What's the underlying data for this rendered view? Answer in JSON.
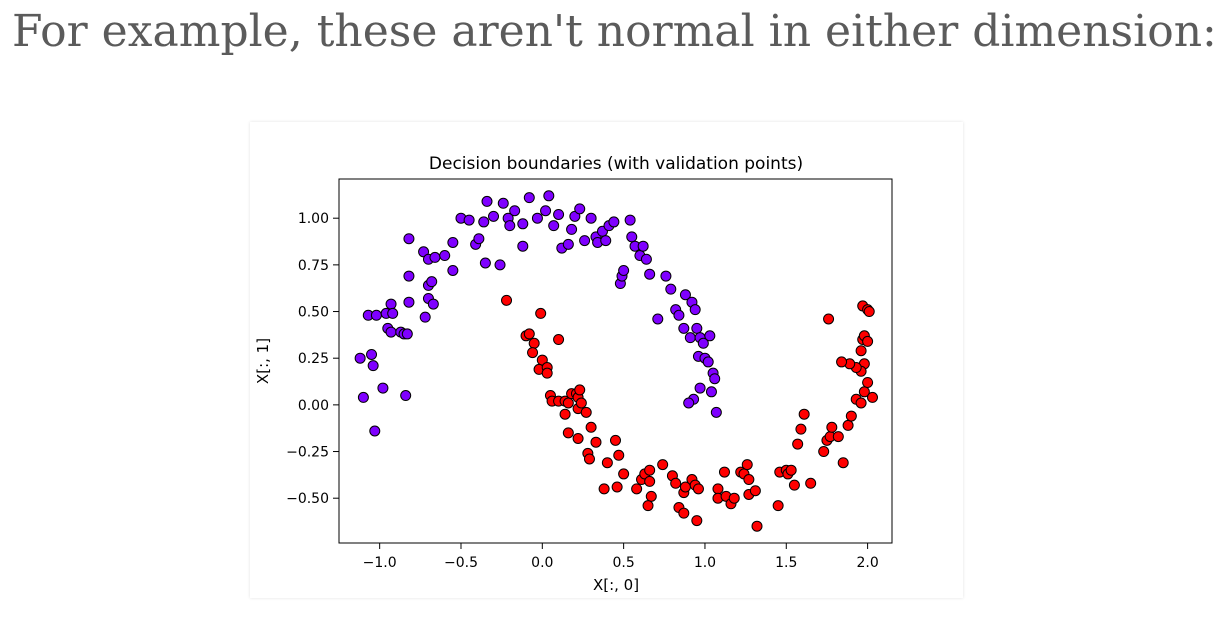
{
  "text": {
    "intro": "For example, these aren't normal in either dimension:"
  },
  "colors": {
    "class_0": "#7f00ff",
    "class_1": "#ff0000",
    "edge": "#000000",
    "page_text": "#5b5b5b"
  },
  "chart_data": {
    "type": "scatter",
    "title": "Decision boundaries (with validation points)",
    "xlabel": "X[:, 0]",
    "ylabel": "X[:, 1]",
    "xlim": [
      -1.25,
      2.15
    ],
    "ylim": [
      -0.74,
      1.21
    ],
    "xticks": [
      -1.0,
      -0.5,
      0.0,
      0.5,
      1.0,
      1.5,
      2.0
    ],
    "xtick_labels": [
      "−1.0",
      "−0.5",
      "0.0",
      "0.5",
      "1.0",
      "1.5",
      "2.0"
    ],
    "yticks": [
      -0.5,
      -0.25,
      0.0,
      0.25,
      0.5,
      0.75,
      1.0
    ],
    "ytick_labels": [
      "−0.50",
      "−0.25",
      "0.00",
      "0.25",
      "0.50",
      "0.75",
      "1.00"
    ],
    "grid": false,
    "legend": "none",
    "series": [
      {
        "class": 0,
        "color": "#7f00ff",
        "points": [
          [
            -1.12,
            0.25
          ],
          [
            -1.05,
            0.27
          ],
          [
            -1.04,
            0.21
          ],
          [
            -1.1,
            0.04
          ],
          [
            -1.03,
            -0.14
          ],
          [
            -0.98,
            0.09
          ],
          [
            -0.84,
            0.05
          ],
          [
            -1.07,
            0.48
          ],
          [
            -1.02,
            0.48
          ],
          [
            -0.96,
            0.49
          ],
          [
            -0.93,
            0.54
          ],
          [
            -0.92,
            0.49
          ],
          [
            -0.95,
            0.41
          ],
          [
            -0.93,
            0.39
          ],
          [
            -0.87,
            0.39
          ],
          [
            -0.85,
            0.38
          ],
          [
            -0.83,
            0.38
          ],
          [
            -0.82,
            0.55
          ],
          [
            -0.82,
            0.69
          ],
          [
            -0.82,
            0.89
          ],
          [
            -0.73,
            0.82
          ],
          [
            -0.7,
            0.78
          ],
          [
            -0.7,
            0.57
          ],
          [
            -0.72,
            0.47
          ],
          [
            -0.7,
            0.64
          ],
          [
            -0.68,
            0.66
          ],
          [
            -0.67,
            0.54
          ],
          [
            -0.66,
            0.79
          ],
          [
            -0.6,
            0.8
          ],
          [
            -0.55,
            0.72
          ],
          [
            -0.55,
            0.87
          ],
          [
            -0.5,
            1.0
          ],
          [
            -0.45,
            0.99
          ],
          [
            -0.41,
            0.86
          ],
          [
            -0.39,
            0.89
          ],
          [
            -0.36,
            0.98
          ],
          [
            -0.35,
            0.76
          ],
          [
            -0.34,
            1.09
          ],
          [
            -0.3,
            1.01
          ],
          [
            -0.26,
            0.75
          ],
          [
            -0.24,
            1.08
          ],
          [
            -0.21,
            1.0
          ],
          [
            -0.2,
            0.96
          ],
          [
            -0.17,
            1.04
          ],
          [
            -0.12,
            0.85
          ],
          [
            -0.12,
            0.97
          ],
          [
            -0.08,
            1.11
          ],
          [
            -0.03,
            1.0
          ],
          [
            0.02,
            1.04
          ],
          [
            0.04,
            1.12
          ],
          [
            0.07,
            0.96
          ],
          [
            0.1,
            1.02
          ],
          [
            0.12,
            0.84
          ],
          [
            0.16,
            0.86
          ],
          [
            0.18,
            0.94
          ],
          [
            0.2,
            1.01
          ],
          [
            0.23,
            1.05
          ],
          [
            0.26,
            0.88
          ],
          [
            0.3,
            1.0
          ],
          [
            0.33,
            0.9
          ],
          [
            0.34,
            0.87
          ],
          [
            0.37,
            0.93
          ],
          [
            0.39,
            0.88
          ],
          [
            0.41,
            0.96
          ],
          [
            0.44,
            0.98
          ],
          [
            0.48,
            0.65
          ],
          [
            0.49,
            0.69
          ],
          [
            0.5,
            0.72
          ],
          [
            0.54,
            0.99
          ],
          [
            0.55,
            0.9
          ],
          [
            0.57,
            0.85
          ],
          [
            0.6,
            0.8
          ],
          [
            0.62,
            0.85
          ],
          [
            0.64,
            0.78
          ],
          [
            0.66,
            0.7
          ],
          [
            0.71,
            0.46
          ],
          [
            0.76,
            0.69
          ],
          [
            0.79,
            0.62
          ],
          [
            0.82,
            0.51
          ],
          [
            0.84,
            0.48
          ],
          [
            0.87,
            0.41
          ],
          [
            0.88,
            0.59
          ],
          [
            0.91,
            0.36
          ],
          [
            0.92,
            0.55
          ],
          [
            0.94,
            0.51
          ],
          [
            0.95,
            0.41
          ],
          [
            0.96,
            0.26
          ],
          [
            0.97,
            0.36
          ],
          [
            0.99,
            0.33
          ],
          [
            1.0,
            0.25
          ],
          [
            1.02,
            0.23
          ],
          [
            1.03,
            0.37
          ],
          [
            1.05,
            0.17
          ],
          [
            1.06,
            0.14
          ],
          [
            1.04,
            0.07
          ],
          [
            0.97,
            0.09
          ],
          [
            0.93,
            0.03
          ],
          [
            0.9,
            0.01
          ],
          [
            1.07,
            -0.04
          ]
        ]
      },
      {
        "class": 1,
        "color": "#ff0000",
        "points": [
          [
            -0.22,
            0.56
          ],
          [
            -0.01,
            0.49
          ],
          [
            -0.1,
            0.37
          ],
          [
            -0.08,
            0.38
          ],
          [
            -0.05,
            0.33
          ],
          [
            -0.06,
            0.28
          ],
          [
            0.0,
            0.24
          ],
          [
            -0.02,
            0.19
          ],
          [
            0.03,
            0.2
          ],
          [
            0.03,
            0.17
          ],
          [
            0.1,
            0.35
          ],
          [
            0.05,
            0.05
          ],
          [
            0.06,
            0.02
          ],
          [
            0.1,
            0.02
          ],
          [
            0.14,
            0.02
          ],
          [
            0.16,
            0.01
          ],
          [
            0.18,
            0.06
          ],
          [
            0.21,
            0.06
          ],
          [
            0.22,
            0.04
          ],
          [
            0.23,
            0.08
          ],
          [
            0.14,
            -0.05
          ],
          [
            0.22,
            -0.02
          ],
          [
            0.24,
            0.01
          ],
          [
            0.27,
            -0.04
          ],
          [
            0.16,
            -0.15
          ],
          [
            0.22,
            -0.18
          ],
          [
            0.28,
            -0.26
          ],
          [
            0.29,
            -0.29
          ],
          [
            0.3,
            -0.12
          ],
          [
            0.33,
            -0.2
          ],
          [
            0.4,
            -0.31
          ],
          [
            0.45,
            -0.19
          ],
          [
            0.47,
            -0.27
          ],
          [
            0.38,
            -0.45
          ],
          [
            0.46,
            -0.44
          ],
          [
            0.5,
            -0.37
          ],
          [
            0.58,
            -0.45
          ],
          [
            0.61,
            -0.4
          ],
          [
            0.63,
            -0.37
          ],
          [
            0.66,
            -0.35
          ],
          [
            0.66,
            -0.41
          ],
          [
            0.67,
            -0.49
          ],
          [
            0.65,
            -0.54
          ],
          [
            0.74,
            -0.32
          ],
          [
            0.8,
            -0.38
          ],
          [
            0.82,
            -0.42
          ],
          [
            0.87,
            -0.47
          ],
          [
            0.88,
            -0.44
          ],
          [
            0.92,
            -0.4
          ],
          [
            0.94,
            -0.43
          ],
          [
            0.96,
            -0.45
          ],
          [
            0.84,
            -0.55
          ],
          [
            0.87,
            -0.58
          ],
          [
            0.95,
            -0.62
          ],
          [
            1.08,
            -0.45
          ],
          [
            1.08,
            -0.5
          ],
          [
            1.12,
            -0.36
          ],
          [
            1.13,
            -0.49
          ],
          [
            1.16,
            -0.53
          ],
          [
            1.18,
            -0.5
          ],
          [
            1.22,
            -0.36
          ],
          [
            1.24,
            -0.37
          ],
          [
            1.26,
            -0.32
          ],
          [
            1.27,
            -0.4
          ],
          [
            1.27,
            -0.48
          ],
          [
            1.31,
            -0.46
          ],
          [
            1.32,
            -0.65
          ],
          [
            1.45,
            -0.54
          ],
          [
            1.46,
            -0.36
          ],
          [
            1.5,
            -0.35
          ],
          [
            1.51,
            -0.37
          ],
          [
            1.53,
            -0.35
          ],
          [
            1.55,
            -0.43
          ],
          [
            1.57,
            -0.21
          ],
          [
            1.59,
            -0.13
          ],
          [
            1.61,
            -0.05
          ],
          [
            1.65,
            -0.42
          ],
          [
            1.73,
            -0.25
          ],
          [
            1.75,
            -0.19
          ],
          [
            1.77,
            -0.17
          ],
          [
            1.78,
            -0.12
          ],
          [
            1.82,
            -0.17
          ],
          [
            1.85,
            -0.31
          ],
          [
            1.88,
            -0.11
          ],
          [
            1.9,
            -0.06
          ],
          [
            1.93,
            0.03
          ],
          [
            1.96,
            0.01
          ],
          [
            1.98,
            0.07
          ],
          [
            2.0,
            0.12
          ],
          [
            2.03,
            0.04
          ],
          [
            1.98,
            0.22
          ],
          [
            1.96,
            0.18
          ],
          [
            1.93,
            0.2
          ],
          [
            1.89,
            0.22
          ],
          [
            1.84,
            0.23
          ],
          [
            1.96,
            0.29
          ],
          [
            1.97,
            0.35
          ],
          [
            1.98,
            0.37
          ],
          [
            2.0,
            0.34
          ],
          [
            1.97,
            0.53
          ],
          [
            2.0,
            0.51
          ],
          [
            2.01,
            0.5
          ],
          [
            1.76,
            0.46
          ]
        ]
      }
    ]
  }
}
